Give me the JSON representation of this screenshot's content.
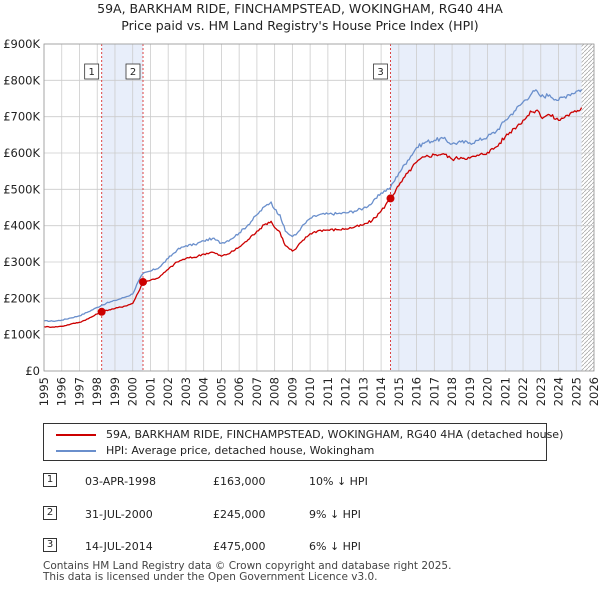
{
  "title": {
    "line1": "59A, BARKHAM RIDE, FINCHAMPSTEAD, WOKINGHAM, RG40 4HA",
    "line2": "Price paid vs. HM Land Registry's House Price Index (HPI)"
  },
  "colors": {
    "price_paid": "#cc0000",
    "hpi": "#6a8fcc",
    "shade": "#e8eefa",
    "grid": "#cccccc"
  },
  "legend": {
    "price_paid_label": "59A, BARKHAM RIDE, FINCHAMPSTEAD, WOKINGHAM, RG40 4HA (detached house)",
    "hpi_label": "HPI: Average price, detached house, Wokingham"
  },
  "transactions": [
    {
      "num": "1",
      "date": "03-APR-1998",
      "price": "£163,000",
      "hpi_diff": "10% ↓ HPI"
    },
    {
      "num": "2",
      "date": "31-JUL-2000",
      "price": "£245,000",
      "hpi_diff": "9% ↓ HPI"
    },
    {
      "num": "3",
      "date": "14-JUL-2014",
      "price": "£475,000",
      "hpi_diff": "6% ↓ HPI"
    }
  ],
  "footer": {
    "line1": "Contains HM Land Registry data © Crown copyright and database right 2025.",
    "line2": "This data is licensed under the Open Government Licence v3.0."
  },
  "chart_data": {
    "type": "line",
    "xlim": [
      1995,
      2026
    ],
    "ylim": [
      0,
      900000
    ],
    "x_ticks": [
      "1995",
      "1996",
      "1997",
      "1998",
      "1999",
      "2000",
      "2001",
      "2002",
      "2003",
      "2004",
      "2005",
      "2006",
      "2007",
      "2008",
      "2009",
      "2010",
      "2011",
      "2012",
      "2013",
      "2014",
      "2015",
      "2016",
      "2017",
      "2018",
      "2019",
      "2020",
      "2021",
      "2022",
      "2023",
      "2024",
      "2025",
      "2026"
    ],
    "y_ticks": [
      {
        "value": 0,
        "label": "£0"
      },
      {
        "value": 100000,
        "label": "£100K"
      },
      {
        "value": 200000,
        "label": "£200K"
      },
      {
        "value": 300000,
        "label": "£300K"
      },
      {
        "value": 400000,
        "label": "£400K"
      },
      {
        "value": 500000,
        "label": "£500K"
      },
      {
        "value": 600000,
        "label": "£600K"
      },
      {
        "value": 700000,
        "label": "£700K"
      },
      {
        "value": 800000,
        "label": "£800K"
      },
      {
        "value": 900000,
        "label": "£900K"
      }
    ],
    "shaded_ranges": [
      [
        1998.25,
        2000.58
      ],
      [
        2014.53,
        2025.3
      ]
    ],
    "hatched_after": 2025.3,
    "markers": [
      {
        "label": "1",
        "x": 1998.25,
        "y": 163000
      },
      {
        "label": "2",
        "x": 2000.58,
        "y": 245000
      },
      {
        "label": "3",
        "x": 2014.53,
        "y": 475000
      }
    ],
    "series": [
      {
        "name": "HPI: Average price, detached house, Wokingham",
        "color": "#6a8fcc",
        "x": [
          1995.0,
          1995.5,
          1996.0,
          1996.5,
          1997.0,
          1997.5,
          1998.0,
          1998.25,
          1998.5,
          1999.0,
          1999.5,
          2000.0,
          2000.3,
          2000.58,
          2001.0,
          2001.5,
          2002.0,
          2002.5,
          2003.0,
          2003.5,
          2004.0,
          2004.5,
          2005.0,
          2005.5,
          2006.0,
          2006.5,
          2007.0,
          2007.5,
          2007.8,
          2008.0,
          2008.3,
          2008.6,
          2009.0,
          2009.2,
          2009.5,
          2010.0,
          2010.5,
          2011.0,
          2011.5,
          2012.0,
          2012.5,
          2013.0,
          2013.5,
          2014.0,
          2014.53,
          2015.0,
          2015.5,
          2016.0,
          2016.5,
          2017.0,
          2017.5,
          2018.0,
          2018.5,
          2019.0,
          2019.5,
          2020.0,
          2020.5,
          2021.0,
          2021.5,
          2022.0,
          2022.5,
          2022.8,
          2023.0,
          2023.5,
          2024.0,
          2024.5,
          2025.0,
          2025.3
        ],
        "y": [
          138000,
          137000,
          140000,
          146000,
          152000,
          163000,
          175000,
          181000,
          186000,
          194000,
          202000,
          212000,
          245000,
          268000,
          275000,
          285000,
          310000,
          333000,
          345000,
          348000,
          358000,
          365000,
          352000,
          362000,
          380000,
          402000,
          430000,
          455000,
          465000,
          445000,
          430000,
          385000,
          370000,
          375000,
          395000,
          420000,
          430000,
          432000,
          433000,
          435000,
          440000,
          448000,
          462000,
          490000,
          505000,
          545000,
          580000,
          615000,
          630000,
          635000,
          640000,
          625000,
          630000,
          628000,
          635000,
          645000,
          660000,
          690000,
          715000,
          740000,
          765000,
          770000,
          755000,
          760000,
          745000,
          760000,
          770000,
          775000
        ]
      },
      {
        "name": "59A, BARKHAM RIDE, FINCHAMPSTEAD, WOKINGHAM, RG40 4HA (detached house)",
        "color": "#cc0000",
        "x": [
          1995.0,
          1995.5,
          1996.0,
          1996.5,
          1997.0,
          1997.5,
          1998.0,
          1998.25,
          1998.5,
          1999.0,
          1999.5,
          2000.0,
          2000.3,
          2000.58,
          2001.0,
          2001.5,
          2002.0,
          2002.5,
          2003.0,
          2003.5,
          2004.0,
          2004.5,
          2005.0,
          2005.5,
          2006.0,
          2006.5,
          2007.0,
          2007.5,
          2007.8,
          2008.0,
          2008.3,
          2008.6,
          2009.0,
          2009.2,
          2009.5,
          2010.0,
          2010.5,
          2011.0,
          2011.5,
          2012.0,
          2012.5,
          2013.0,
          2013.5,
          2014.0,
          2014.53,
          2015.0,
          2015.5,
          2016.0,
          2016.5,
          2017.0,
          2017.5,
          2018.0,
          2018.5,
          2019.0,
          2019.5,
          2020.0,
          2020.5,
          2021.0,
          2021.5,
          2022.0,
          2022.5,
          2022.8,
          2023.0,
          2023.5,
          2024.0,
          2024.5,
          2025.0,
          2025.3
        ],
        "y": [
          122000,
          121000,
          123000,
          129000,
          134000,
          144000,
          157000,
          163000,
          167000,
          172000,
          178000,
          186000,
          215000,
          245000,
          250000,
          258000,
          280000,
          300000,
          310000,
          313000,
          322000,
          327000,
          316000,
          325000,
          341000,
          361000,
          385000,
          405000,
          412000,
          395000,
          382000,
          345000,
          330000,
          336000,
          355000,
          378000,
          387000,
          388000,
          389000,
          391000,
          396000,
          402000,
          414000,
          440000,
          475000,
          510000,
          545000,
          575000,
          590000,
          595000,
          598000,
          583000,
          588000,
          586000,
          593000,
          602000,
          617000,
          645000,
          668000,
          690000,
          713000,
          718000,
          700000,
          705000,
          690000,
          704000,
          713000,
          725000
        ]
      }
    ]
  }
}
